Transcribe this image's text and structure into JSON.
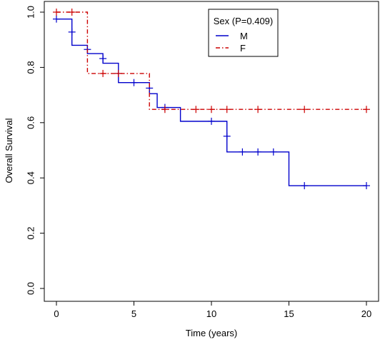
{
  "chart_data": {
    "type": "line",
    "title": "",
    "xlabel": "Time (years)",
    "ylabel": "Overall Survival",
    "xlim": [
      0,
      20
    ],
    "ylim": [
      0,
      1
    ],
    "xticks": [
      0,
      5,
      10,
      15,
      20
    ],
    "yticks": [
      0.0,
      0.2,
      0.4,
      0.6,
      0.8,
      1.0
    ],
    "xtick_labels": [
      "0",
      "5",
      "10",
      "15",
      "20"
    ],
    "ytick_labels": [
      "0.0",
      "0.2",
      "0.4",
      "0.6",
      "0.8",
      "1.0"
    ],
    "grid": false,
    "legend": {
      "title": "Sex (P=0.409)",
      "placement": "top-right",
      "entries": [
        "M",
        "F"
      ]
    },
    "series": [
      {
        "name": "M",
        "color": "#0000cc",
        "line_style": "solid",
        "steps": [
          [
            0,
            0.975
          ],
          [
            1,
            0.88
          ],
          [
            2,
            0.85
          ],
          [
            3,
            0.815
          ],
          [
            4,
            0.745
          ],
          [
            6,
            0.705
          ],
          [
            6.5,
            0.655
          ],
          [
            8,
            0.605
          ],
          [
            11,
            0.494
          ],
          [
            15,
            0.372
          ],
          [
            20,
            0.372
          ]
        ],
        "censor": [
          [
            0,
            0.975
          ],
          [
            1,
            0.928
          ],
          [
            2,
            0.865
          ],
          [
            3,
            0.832
          ],
          [
            4,
            0.778
          ],
          [
            5,
            0.745
          ],
          [
            6,
            0.725
          ],
          [
            7,
            0.655
          ],
          [
            10,
            0.605
          ],
          [
            11,
            0.551
          ],
          [
            12,
            0.494
          ],
          [
            13,
            0.494
          ],
          [
            14,
            0.494
          ],
          [
            16,
            0.372
          ],
          [
            20,
            0.372
          ]
        ]
      },
      {
        "name": "F",
        "color": "#cc0000",
        "line_style": "dashdot",
        "steps": [
          [
            0,
            1.0
          ],
          [
            2,
            0.778
          ],
          [
            6,
            0.648
          ],
          [
            20,
            0.648
          ]
        ],
        "censor": [
          [
            0,
            1.0
          ],
          [
            1,
            1.0
          ],
          [
            3,
            0.778
          ],
          [
            4,
            0.778
          ],
          [
            7,
            0.648
          ],
          [
            9,
            0.648
          ],
          [
            10,
            0.648
          ],
          [
            11,
            0.648
          ],
          [
            13,
            0.648
          ],
          [
            16,
            0.648
          ],
          [
            20,
            0.648
          ]
        ]
      }
    ]
  }
}
